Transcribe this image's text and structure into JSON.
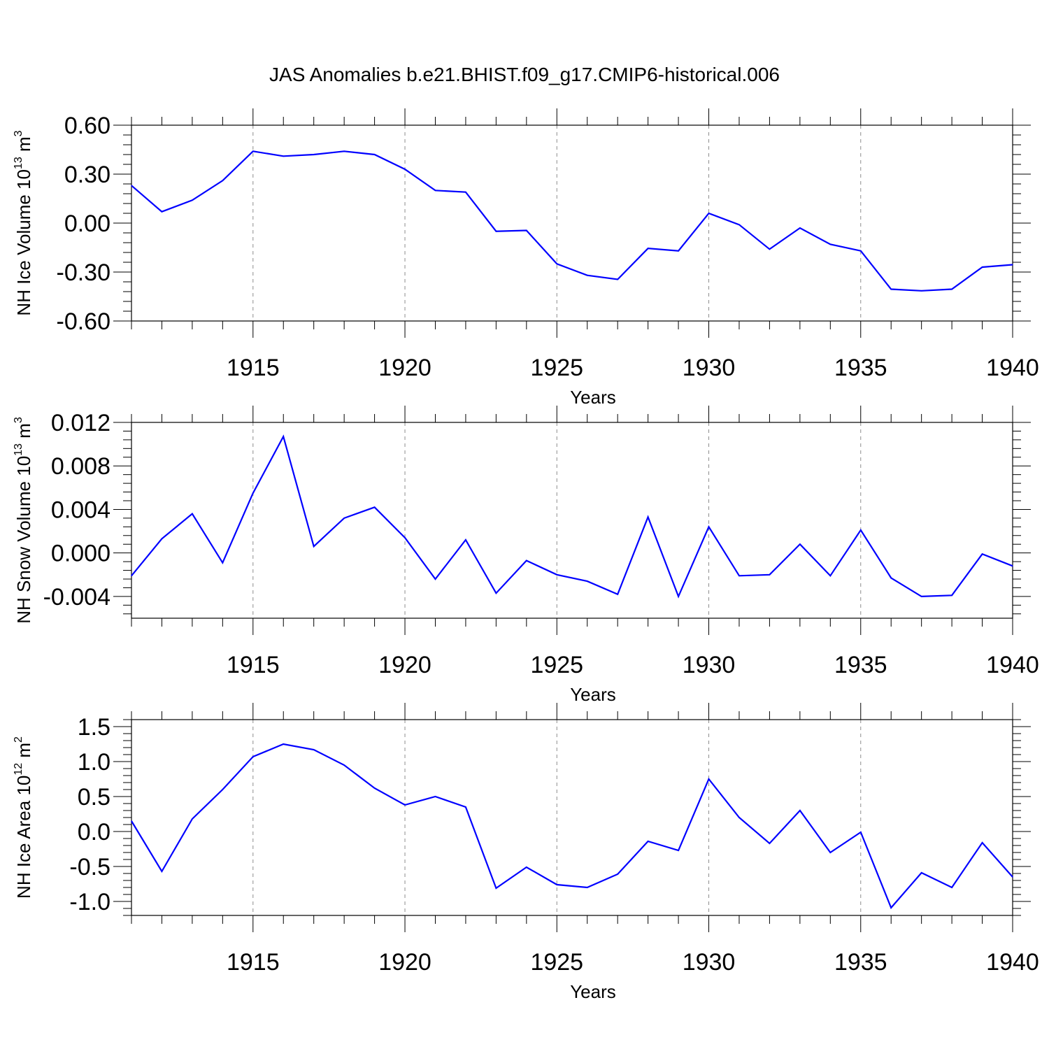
{
  "figure_title": "JAS Anomalies b.e21.BHIST.f09_g17.CMIP6-historical.006",
  "colors": {
    "line": "#0000ff",
    "axis": "#000000",
    "grid": "#8c8c8c"
  },
  "chart_data": [
    {
      "type": "line",
      "ylabel": {
        "main": "NH Ice Volume 10",
        "sup": "13",
        "unit": " m",
        "unit_sup": "3"
      },
      "xlabel": "Years",
      "xlim": [
        1911,
        1940
      ],
      "ylim": [
        -0.6,
        0.6
      ],
      "yticks": [
        -0.6,
        -0.3,
        0.0,
        0.3,
        0.6
      ],
      "ytick_labels": [
        "-0.60",
        "-0.30",
        "0.00",
        "0.30",
        "0.60"
      ],
      "xticks": [
        1915,
        1920,
        1925,
        1930,
        1935,
        1940
      ],
      "xtick_labels": [
        "1915",
        "1920",
        "1925",
        "1930",
        "1935",
        "1940"
      ],
      "grid": "vertical dashed at major x ticks",
      "x": [
        1911,
        1912,
        1913,
        1914,
        1915,
        1916,
        1917,
        1918,
        1919,
        1920,
        1921,
        1922,
        1923,
        1924,
        1925,
        1926,
        1927,
        1928,
        1929,
        1930,
        1931,
        1932,
        1933,
        1934,
        1935,
        1936,
        1937,
        1938,
        1939,
        1940
      ],
      "series": [
        {
          "values": [
            0.23,
            0.07,
            0.14,
            0.26,
            0.44,
            0.41,
            0.42,
            0.44,
            0.42,
            0.33,
            0.2,
            0.19,
            -0.05,
            -0.045,
            -0.25,
            -0.32,
            -0.345,
            -0.155,
            -0.17,
            0.06,
            -0.01,
            -0.16,
            -0.03,
            -0.13,
            -0.17,
            -0.405,
            -0.415,
            -0.405,
            -0.27,
            -0.255
          ]
        }
      ]
    },
    {
      "type": "line",
      "ylabel": {
        "main": "NH Snow Volume 10",
        "sup": "13",
        "unit": " m",
        "unit_sup": "3"
      },
      "xlabel": "Years",
      "xlim": [
        1911,
        1940
      ],
      "ylim": [
        -0.006,
        0.012
      ],
      "yticks": [
        -0.004,
        0.0,
        0.004,
        0.008,
        0.012
      ],
      "ytick_labels": [
        "-0.004",
        "0.000",
        "0.004",
        "0.008",
        "0.012"
      ],
      "xticks": [
        1915,
        1920,
        1925,
        1930,
        1935,
        1940
      ],
      "xtick_labels": [
        "1915",
        "1920",
        "1925",
        "1930",
        "1935",
        "1940"
      ],
      "grid": "vertical dashed at major x ticks",
      "x": [
        1911,
        1912,
        1913,
        1914,
        1915,
        1916,
        1917,
        1918,
        1919,
        1920,
        1921,
        1922,
        1923,
        1924,
        1925,
        1926,
        1927,
        1928,
        1929,
        1930,
        1931,
        1932,
        1933,
        1934,
        1935,
        1936,
        1937,
        1938,
        1939,
        1940
      ],
      "series": [
        {
          "values": [
            -0.0021,
            0.0013,
            0.0036,
            -0.0009,
            0.0055,
            0.0107,
            0.0006,
            0.0032,
            0.0042,
            0.0014,
            -0.0024,
            0.0012,
            -0.0037,
            -0.0007,
            -0.002,
            -0.0026,
            -0.0038,
            0.0033,
            -0.004,
            0.0024,
            -0.0021,
            -0.002,
            0.0008,
            -0.0021,
            0.0021,
            -0.0023,
            -0.004,
            -0.0039,
            -0.0001,
            -0.0012
          ]
        }
      ]
    },
    {
      "type": "line",
      "ylabel": {
        "main": "NH Ice Area 10",
        "sup": "12",
        "unit": " m",
        "unit_sup": "2"
      },
      "xlabel": "Years",
      "xlim": [
        1911,
        1940
      ],
      "ylim": [
        -1.2,
        1.6
      ],
      "yticks": [
        -1.0,
        -0.5,
        0.0,
        0.5,
        1.0,
        1.5
      ],
      "ytick_labels": [
        "-1.0",
        "-0.5",
        "0.0",
        "0.5",
        "1.0",
        "1.5"
      ],
      "xticks": [
        1915,
        1920,
        1925,
        1930,
        1935,
        1940
      ],
      "xtick_labels": [
        "1915",
        "1920",
        "1925",
        "1930",
        "1935",
        "1940"
      ],
      "grid": "vertical dashed at major x ticks",
      "x": [
        1911,
        1912,
        1913,
        1914,
        1915,
        1916,
        1917,
        1918,
        1919,
        1920,
        1921,
        1922,
        1923,
        1924,
        1925,
        1926,
        1927,
        1928,
        1929,
        1930,
        1931,
        1932,
        1933,
        1934,
        1935,
        1936,
        1937,
        1938,
        1939,
        1940
      ],
      "series": [
        {
          "values": [
            0.15,
            -0.57,
            0.18,
            0.6,
            1.07,
            1.25,
            1.17,
            0.95,
            0.62,
            0.38,
            0.5,
            0.35,
            -0.81,
            -0.51,
            -0.76,
            -0.8,
            -0.61,
            -0.14,
            -0.27,
            0.75,
            0.2,
            -0.17,
            0.3,
            -0.3,
            -0.01,
            -1.09,
            -0.59,
            -0.8,
            -0.16,
            -0.65
          ]
        }
      ]
    }
  ]
}
